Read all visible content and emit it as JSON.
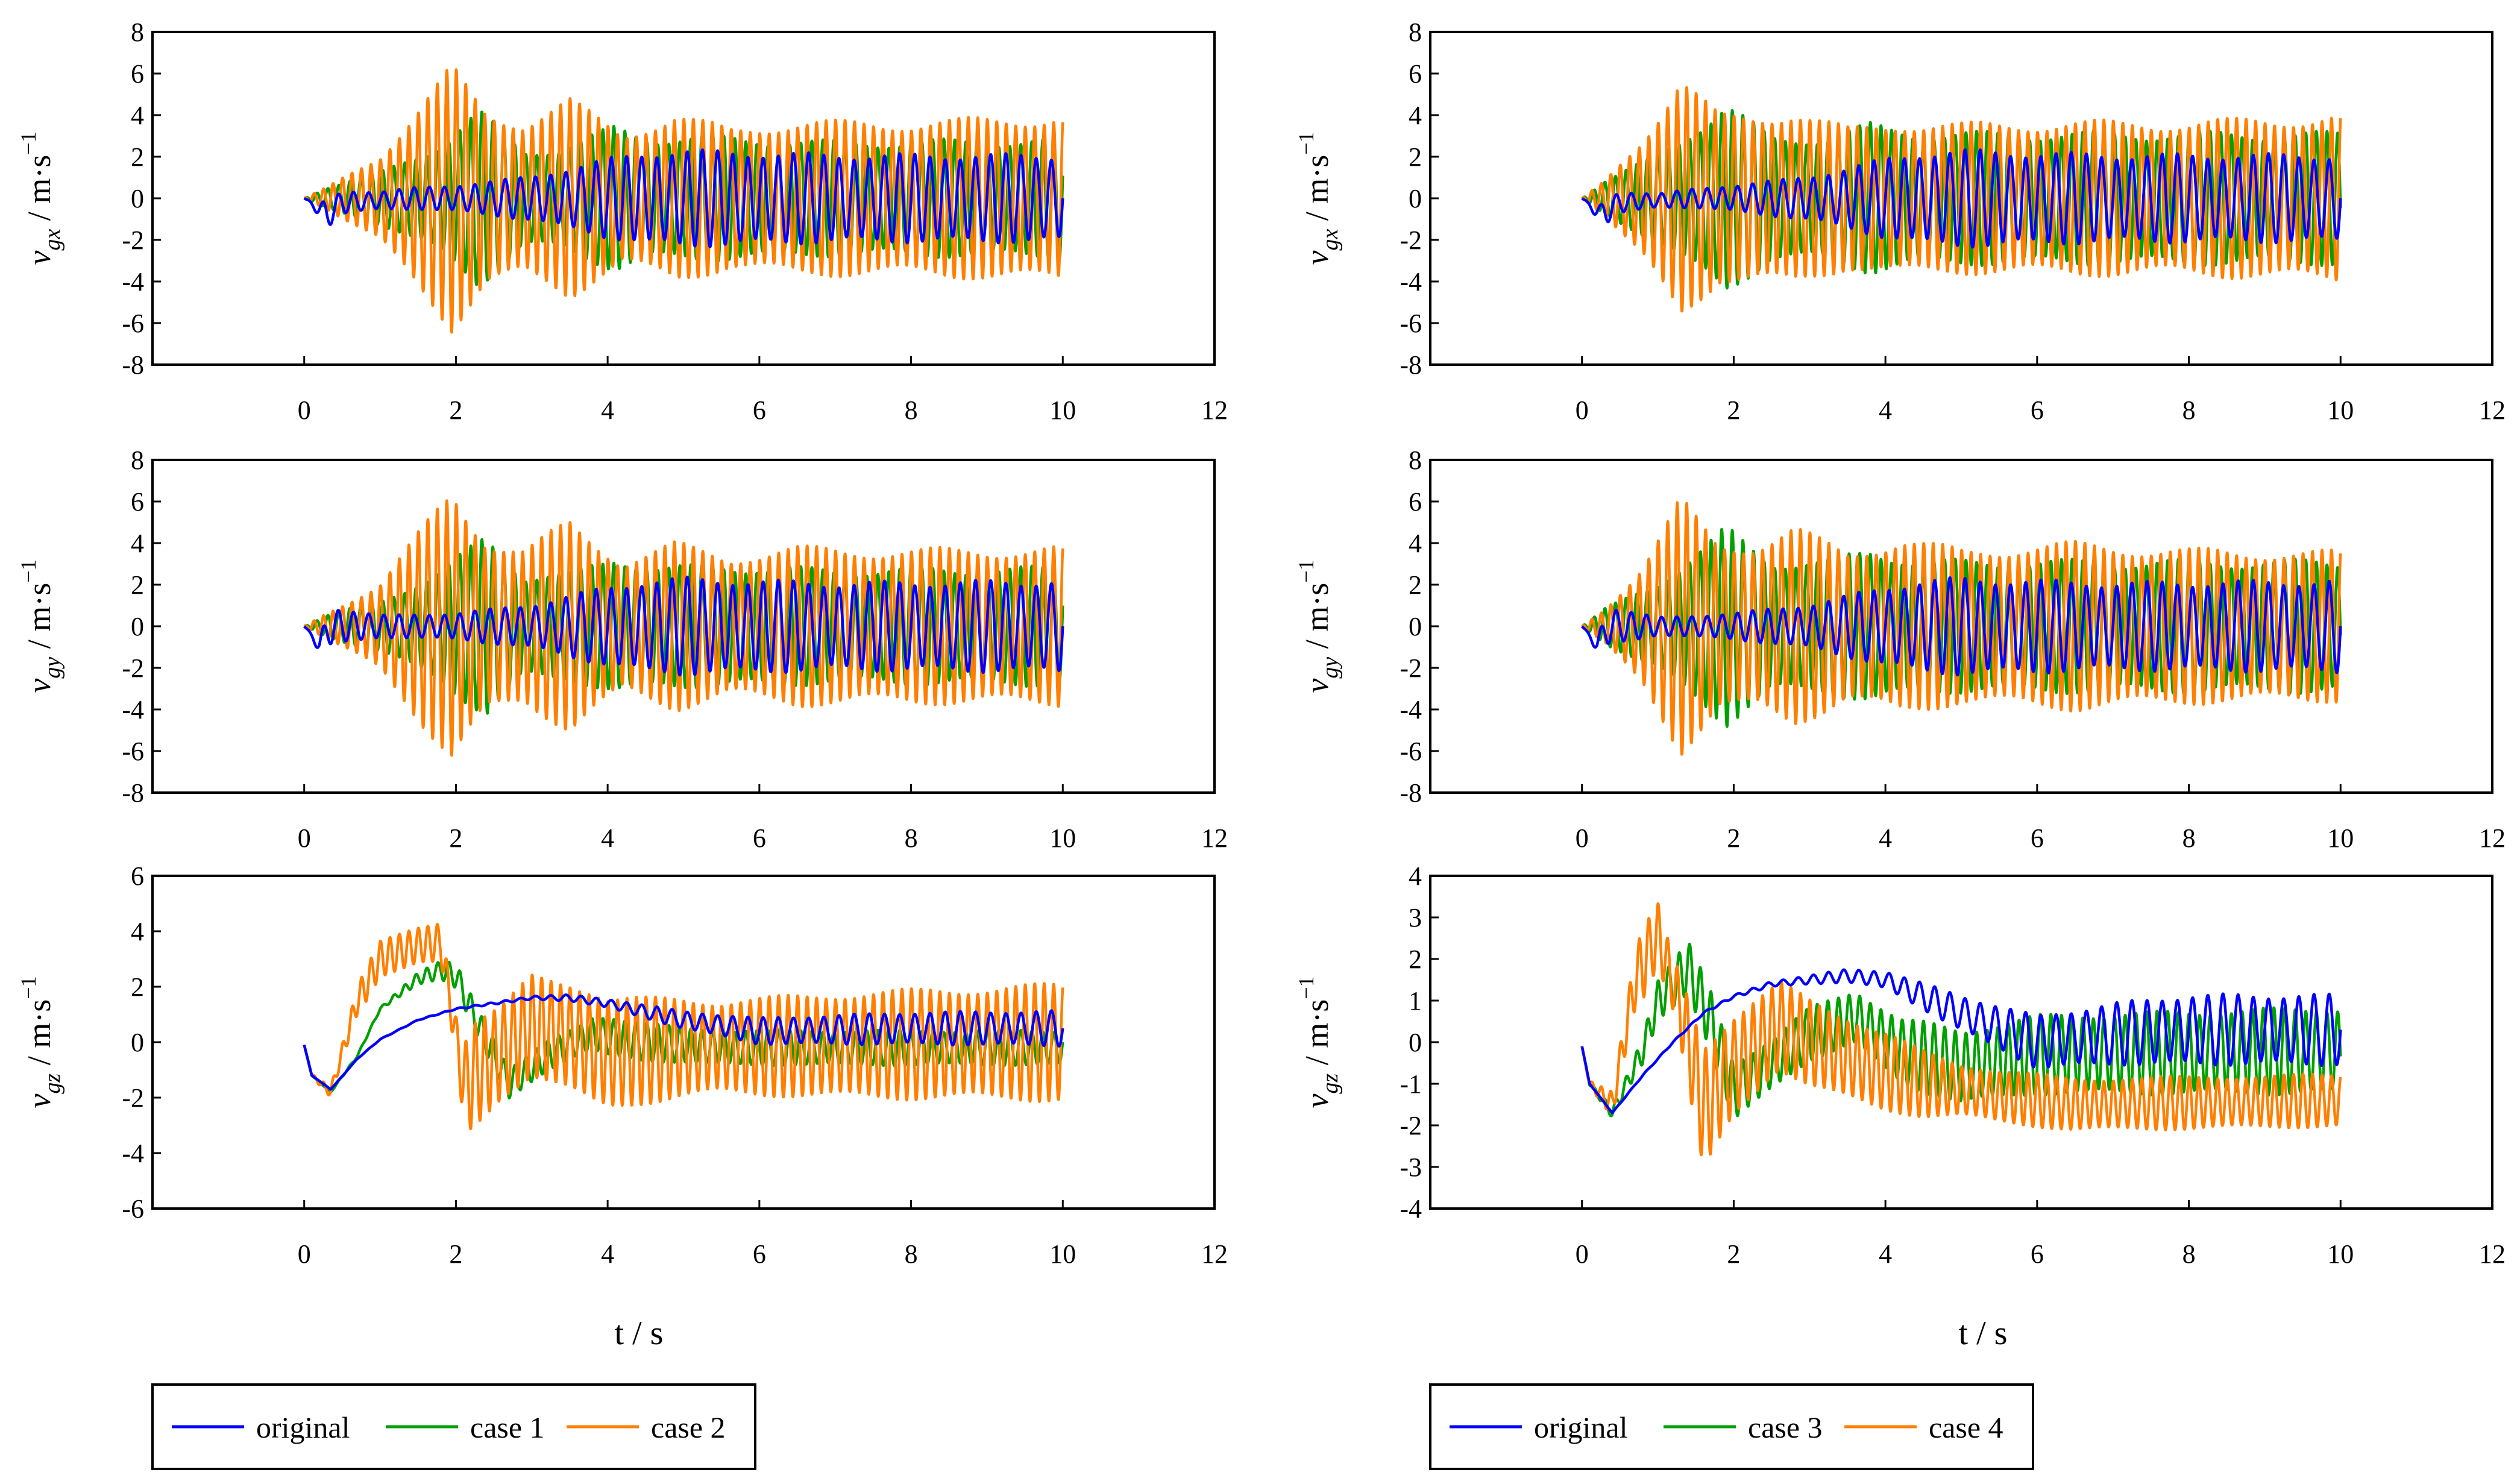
{
  "colors": {
    "original": "#0000FF",
    "case1": "#00A000",
    "case2": "#FF7F00",
    "case3": "#00A000",
    "case4": "#FF7F00",
    "axis": "#000000"
  },
  "x_axis_label": "t / s",
  "legends": {
    "left": [
      "original",
      "case 1",
      "case 2"
    ],
    "right": [
      "original",
      "case 3",
      "case 4"
    ]
  },
  "chart_data": [
    {
      "id": "vgx-left",
      "type": "line",
      "ylabel": "v_gx / m·s⁻¹",
      "xlabel": "t / s",
      "xlim": [
        -2,
        12
      ],
      "ylim": [
        -8,
        8
      ],
      "xticks": [
        "0",
        "2",
        "4",
        "6",
        "8",
        "10",
        "12"
      ],
      "yticks": [
        "-8",
        "-6",
        "-4",
        "-2",
        "0",
        "2",
        "4",
        "6",
        "8"
      ],
      "series": [
        {
          "name": "original",
          "kind": "osc",
          "period": 0.2,
          "phase": 0.0,
          "freq_shift": 0,
          "env_t": [
            0,
            0.1,
            0.3,
            1.0,
            2.0,
            3.0,
            4.0,
            4.5,
            5.0,
            7.0,
            10.0
          ],
          "env": [
            0,
            0.1,
            0.6,
            0.4,
            0.6,
            1.0,
            1.8,
            2.1,
            2.2,
            2.0,
            2.0
          ],
          "cen_t": [
            0,
            0.3,
            0.5,
            1.5,
            4.0,
            10.0
          ],
          "cen": [
            0,
            -0.8,
            -0.2,
            0.0,
            0.0,
            0.0
          ]
        },
        {
          "name": "case 1",
          "kind": "osc",
          "period": 0.145,
          "phase": 0.6,
          "env_t": [
            0,
            0.3,
            1.0,
            1.8,
            2.3,
            2.9,
            3.4,
            4.1,
            4.6,
            5.5,
            7.0,
            10.0
          ],
          "env": [
            0,
            0.5,
            1.2,
            2.5,
            4.0,
            2.2,
            2.3,
            3.3,
            2.8,
            2.8,
            2.6,
            2.7
          ],
          "cen_t": [
            0,
            10.0
          ],
          "cen": [
            0,
            0
          ]
        },
        {
          "name": "case 2",
          "kind": "osc",
          "period": 0.125,
          "phase": 1.3,
          "env_t": [
            0,
            0.3,
            1.0,
            1.95,
            2.4,
            2.9,
            3.5,
            4.2,
            4.9,
            5.6,
            6.5,
            8.0,
            10.0
          ],
          "env": [
            0,
            0.5,
            2.0,
            6.0,
            4.0,
            3.5,
            4.5,
            3.0,
            3.8,
            3.2,
            3.5,
            3.5,
            3.8
          ],
          "cen_t": [
            0,
            10.0
          ],
          "cen": [
            0,
            0
          ]
        }
      ]
    },
    {
      "id": "vgx-right",
      "type": "line",
      "ylabel": "v_gx / m·s⁻¹",
      "xlabel": "t / s",
      "xlim": [
        -2,
        12
      ],
      "ylim": [
        -8,
        8
      ],
      "xticks": [
        "0",
        "2",
        "4",
        "6",
        "8",
        "10",
        "12"
      ],
      "yticks": [
        "-8",
        "-6",
        "-4",
        "-2",
        "0",
        "2",
        "4",
        "6",
        "8"
      ],
      "series": [
        {
          "name": "original",
          "kind": "osc",
          "period": 0.2,
          "phase": 0.0,
          "env_t": [
            0,
            0.1,
            0.3,
            1.0,
            2.0,
            3.0,
            4.0,
            4.5,
            5.0,
            7.0,
            10.0
          ],
          "env": [
            0,
            0.1,
            0.6,
            0.3,
            0.6,
            1.0,
            1.8,
            2.1,
            2.2,
            2.0,
            2.0
          ],
          "cen_t": [
            0,
            0.25,
            0.5,
            1.5,
            4.0,
            10.0
          ],
          "cen": [
            0,
            -0.8,
            -0.2,
            0.0,
            0.0,
            0.0
          ]
        },
        {
          "name": "case 3",
          "kind": "osc",
          "period": 0.14,
          "phase": 0.6,
          "env_t": [
            0,
            0.3,
            1.0,
            1.9,
            2.5,
            3.2,
            3.8,
            4.5,
            6.0,
            8.0,
            10.0
          ],
          "env": [
            0,
            0.8,
            2.0,
            4.3,
            2.8,
            2.8,
            3.4,
            3.0,
            3.0,
            3.0,
            3.0
          ],
          "cen_t": [
            0,
            10.0
          ],
          "cen": [
            0,
            0
          ]
        },
        {
          "name": "case 4",
          "kind": "osc",
          "period": 0.125,
          "phase": 1.3,
          "env_t": [
            0,
            0.3,
            0.8,
            1.3,
            1.8,
            2.3,
            2.8,
            3.5,
            4.2,
            5.0,
            6.5,
            8.0,
            10.0
          ],
          "env": [
            0,
            0.8,
            2.8,
            5.5,
            3.8,
            3.8,
            4.0,
            3.2,
            3.5,
            3.4,
            3.5,
            3.5,
            3.8
          ],
          "cen_t": [
            0,
            10.0
          ],
          "cen": [
            0,
            0
          ]
        }
      ]
    },
    {
      "id": "vgy-left",
      "type": "line",
      "ylabel": "v_gy / m·s⁻¹",
      "xlabel": "t / s",
      "xlim": [
        -2,
        12
      ],
      "ylim": [
        -8,
        8
      ],
      "xticks": [
        "0",
        "2",
        "4",
        "6",
        "8",
        "10",
        "12"
      ],
      "yticks": [
        "-8",
        "-6",
        "-4",
        "-2",
        "0",
        "2",
        "4",
        "6",
        "8"
      ],
      "series": [
        {
          "name": "original",
          "kind": "osc",
          "period": 0.2,
          "phase": 0.0,
          "env_t": [
            0,
            0.1,
            0.35,
            1.0,
            2.0,
            3.0,
            4.0,
            4.5,
            5.0,
            7.0,
            10.0
          ],
          "env": [
            0,
            0.1,
            0.9,
            0.5,
            0.6,
            1.0,
            1.8,
            2.1,
            2.2,
            2.0,
            2.1
          ],
          "cen_t": [
            0,
            0.2,
            0.35,
            0.5,
            1.5,
            10.0
          ],
          "cen": [
            0,
            -0.9,
            0.0,
            0.0,
            0.0,
            0.0
          ]
        },
        {
          "name": "case 1",
          "kind": "osc",
          "period": 0.145,
          "phase": 0.6,
          "env_t": [
            0,
            0.3,
            1.0,
            1.8,
            2.4,
            2.9,
            3.5,
            4.1,
            4.7,
            5.5,
            7.0,
            10.0
          ],
          "env": [
            0,
            0.5,
            1.2,
            2.5,
            4.2,
            2.3,
            2.4,
            3.2,
            2.7,
            2.8,
            2.6,
            2.7
          ],
          "cen_t": [
            0,
            10.0
          ],
          "cen": [
            0,
            0
          ]
        },
        {
          "name": "case 2",
          "kind": "osc",
          "period": 0.125,
          "phase": 1.3,
          "env_t": [
            0,
            0.3,
            1.0,
            1.95,
            2.4,
            2.9,
            3.5,
            4.2,
            4.9,
            5.6,
            6.5,
            8.0,
            10.0
          ],
          "env": [
            0,
            0.6,
            2.0,
            6.2,
            4.0,
            3.5,
            4.8,
            3.0,
            3.8,
            3.2,
            3.6,
            3.5,
            3.6
          ],
          "cen_t": [
            0,
            10.0
          ],
          "cen": [
            0,
            0
          ]
        }
      ]
    },
    {
      "id": "vgy-right",
      "type": "line",
      "ylabel": "v_gy / m·s⁻¹",
      "xlabel": "t / s",
      "xlim": [
        -2,
        12
      ],
      "ylim": [
        -8,
        8
      ],
      "xticks": [
        "0",
        "2",
        "4",
        "6",
        "8",
        "10",
        "12"
      ],
      "yticks": [
        "-8",
        "-6",
        "-4",
        "-2",
        "0",
        "2",
        "4",
        "6",
        "8"
      ],
      "series": [
        {
          "name": "original",
          "kind": "osc",
          "period": 0.2,
          "phase": 0.0,
          "env_t": [
            0,
            0.1,
            0.35,
            1.0,
            2.0,
            3.0,
            4.0,
            4.5,
            5.0,
            7.0,
            10.0
          ],
          "env": [
            0,
            0.1,
            0.9,
            0.4,
            0.6,
            1.0,
            1.8,
            2.1,
            2.2,
            2.0,
            2.1
          ],
          "cen_t": [
            0,
            0.2,
            0.35,
            0.5,
            1.5,
            10.0
          ],
          "cen": [
            0,
            -0.9,
            0.0,
            0.0,
            0.0,
            0.0
          ]
        },
        {
          "name": "case 3",
          "kind": "osc",
          "period": 0.14,
          "phase": 0.6,
          "env_t": [
            0,
            0.3,
            1.0,
            1.9,
            2.5,
            3.2,
            3.8,
            4.5,
            6.0,
            8.0,
            10.0
          ],
          "env": [
            0,
            0.8,
            2.0,
            4.5,
            3.0,
            3.0,
            3.5,
            3.0,
            3.0,
            3.0,
            3.0
          ],
          "cen_t": [
            0,
            10.0
          ],
          "cen": [
            0,
            0
          ]
        },
        {
          "name": "case 4",
          "kind": "osc",
          "period": 0.125,
          "phase": 1.3,
          "env_t": [
            0,
            0.3,
            0.8,
            1.3,
            1.8,
            2.3,
            2.8,
            3.5,
            4.2,
            5.0,
            6.5,
            8.0,
            10.0
          ],
          "env": [
            0,
            0.8,
            2.8,
            5.8,
            3.8,
            3.8,
            4.5,
            3.4,
            4.0,
            3.5,
            3.8,
            3.5,
            3.4
          ],
          "cen_t": [
            0,
            10.0
          ],
          "cen": [
            0,
            0
          ]
        }
      ]
    },
    {
      "id": "vgz-left",
      "type": "line",
      "ylabel": "v_gz / m·s⁻¹",
      "xlabel": "t / s",
      "xlim": [
        -2,
        12
      ],
      "ylim": [
        -6,
        6
      ],
      "xticks": [
        "0",
        "2",
        "4",
        "6",
        "8",
        "10",
        "12"
      ],
      "yticks": [
        "-6",
        "-4",
        "-2",
        "0",
        "2",
        "4",
        "6"
      ],
      "series": [
        {
          "name": "original",
          "kind": "osc",
          "period": 0.2,
          "phase": 0.0,
          "env_t": [
            0,
            2.0,
            3.0,
            4.0,
            5.0,
            6.0,
            8.0,
            10.0
          ],
          "env": [
            0,
            0.02,
            0.06,
            0.15,
            0.3,
            0.45,
            0.55,
            0.6
          ],
          "cen_t": [
            0,
            0.1,
            0.35,
            0.7,
            1.0,
            1.5,
            2.0,
            2.5,
            3.0,
            3.5,
            4.0,
            5.0,
            6.0,
            8.0,
            10.0
          ],
          "cen": [
            -0.1,
            -1.2,
            -1.7,
            -0.6,
            0.1,
            0.8,
            1.2,
            1.4,
            1.6,
            1.6,
            1.4,
            0.8,
            0.4,
            0.5,
            0.5
          ]
        },
        {
          "name": "case 1",
          "kind": "osc",
          "period": 0.145,
          "phase": 0.6,
          "env_t": [
            0,
            1.0,
            1.8,
            2.1,
            2.4,
            3.0,
            3.6,
            4.0,
            5.0,
            10.0
          ],
          "env": [
            0,
            0.05,
            0.3,
            0.5,
            0.6,
            0.5,
            0.5,
            0.7,
            0.6,
            0.6
          ],
          "cen_t": [
            0,
            0.1,
            0.35,
            0.7,
            1.0,
            1.5,
            1.8,
            2.0,
            2.3,
            2.7,
            3.2,
            3.8,
            4.5,
            5.5,
            10.0
          ],
          "cen": [
            -0.1,
            -1.2,
            -1.8,
            -0.5,
            1.2,
            2.3,
            2.6,
            2.4,
            0.6,
            -1.5,
            -0.5,
            0.3,
            0.0,
            -0.2,
            -0.2
          ]
        },
        {
          "name": "case 2",
          "kind": "osc",
          "period": 0.125,
          "phase": 1.3,
          "env_t": [
            0,
            0.5,
            0.8,
            1.5,
            2.0,
            2.2,
            2.6,
            3.3,
            3.8,
            4.5,
            5.5,
            7.0,
            10.0
          ],
          "env": [
            0,
            0.3,
            0.6,
            0.6,
            0.8,
            2.0,
            1.6,
            1.8,
            2.0,
            1.8,
            1.6,
            1.8,
            2.0
          ],
          "cen_t": [
            0,
            0.1,
            0.35,
            0.7,
            1.0,
            1.5,
            1.8,
            2.1,
            2.5,
            3.0,
            3.5,
            4.0,
            5.0,
            10.0
          ],
          "cen": [
            -0.1,
            -1.2,
            -1.8,
            1.5,
            3.0,
            3.5,
            3.6,
            -1.5,
            -0.6,
            0.6,
            0.2,
            -0.4,
            -0.2,
            0.0
          ]
        }
      ]
    },
    {
      "id": "vgz-right",
      "type": "line",
      "ylabel": "v_gz / m·s⁻¹",
      "xlabel": "t / s",
      "xlim": [
        -2,
        12
      ],
      "ylim": [
        -4,
        4
      ],
      "xticks": [
        "0",
        "2",
        "4",
        "6",
        "8",
        "10",
        "12"
      ],
      "yticks": [
        "-4",
        "-3",
        "-2",
        "-1",
        "0",
        "1",
        "2",
        "3",
        "4"
      ],
      "series": [
        {
          "name": "original",
          "kind": "osc",
          "period": 0.2,
          "phase": 0.0,
          "env_t": [
            0,
            2.0,
            3.0,
            4.0,
            5.0,
            6.0,
            8.0,
            10.0
          ],
          "env": [
            0,
            0.03,
            0.1,
            0.2,
            0.4,
            0.6,
            0.8,
            0.8
          ],
          "cen_t": [
            0,
            0.1,
            0.4,
            0.8,
            1.2,
            1.6,
            2.0,
            2.5,
            3.0,
            3.5,
            4.0,
            5.0,
            6.0,
            7.0,
            8.0,
            10.0
          ],
          "cen": [
            -0.1,
            -1.0,
            -1.7,
            -0.8,
            0.0,
            0.7,
            1.1,
            1.4,
            1.5,
            1.6,
            1.5,
            0.7,
            0.0,
            0.2,
            0.3,
            0.3
          ]
        },
        {
          "name": "case 3",
          "kind": "osc",
          "period": 0.14,
          "phase": 0.6,
          "env_t": [
            0,
            0.6,
            1.0,
            1.4,
            1.8,
            2.5,
            3.5,
            4.5,
            6.0,
            10.0
          ],
          "env": [
            0,
            0.2,
            0.5,
            0.6,
            0.7,
            0.6,
            0.6,
            0.8,
            0.9,
            1.0
          ],
          "cen_t": [
            0,
            0.1,
            0.4,
            0.8,
            1.0,
            1.4,
            1.7,
            2.0,
            2.3,
            3.0,
            3.6,
            4.2,
            5.0,
            6.0,
            10.0
          ],
          "cen": [
            -0.1,
            -1.0,
            -1.7,
            -0.2,
            1.0,
            1.8,
            0.5,
            -1.2,
            -0.8,
            0.2,
            0.6,
            -0.2,
            -0.6,
            -0.3,
            -0.2
          ]
        },
        {
          "name": "case 4",
          "kind": "osc",
          "period": 0.125,
          "phase": 1.3,
          "env_t": [
            0,
            0.5,
            0.8,
            1.2,
            1.6,
            2.0,
            2.5,
            3.0,
            4.0,
            5.0,
            6.0,
            10.0
          ],
          "env": [
            0,
            0.4,
            0.8,
            0.6,
            1.5,
            1.2,
            1.0,
            1.0,
            0.9,
            0.6,
            0.6,
            0.6
          ],
          "cen_t": [
            0,
            0.1,
            0.4,
            0.7,
            1.0,
            1.3,
            1.6,
            2.0,
            2.6,
            3.0,
            3.8,
            4.5,
            5.5,
            6.5,
            10.0
          ],
          "cen": [
            -0.1,
            -1.0,
            -1.5,
            1.5,
            2.6,
            0.8,
            -1.6,
            -0.6,
            0.4,
            0.0,
            -0.6,
            -1.0,
            -1.3,
            -1.5,
            -1.4
          ]
        }
      ]
    }
  ]
}
